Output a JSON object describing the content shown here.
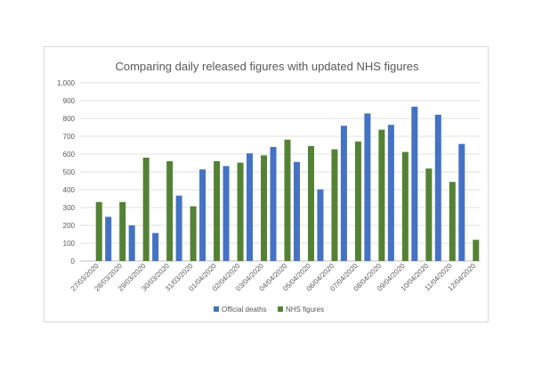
{
  "chart_data": {
    "type": "bar",
    "title": "Comparing daily released figures with updated NHS figures",
    "xlabel": "",
    "ylabel": "",
    "categories": [
      "27/03/2020",
      "28/03/2020",
      "29/03/2020",
      "30/03/2020",
      "31/03/2020",
      "01/04/2020",
      "02/04/2020",
      "03/04/2020",
      "04/04/2020",
      "05/04/2020",
      "06/04/2020",
      "07/04/2020",
      "08/04/2020",
      "09/04/2020",
      "10/04/2020",
      "11/04/2020",
      "12/04/2020"
    ],
    "series": [
      {
        "name": "Official deaths",
        "color": "#4472c4",
        "values": [
          null,
          248,
          200,
          157,
          367,
          514,
          533,
          604,
          640,
          556,
          402,
          759,
          828,
          764,
          866,
          821,
          657
        ]
      },
      {
        "name": "NHS figures",
        "color": "#548235",
        "values": [
          331,
          331,
          580,
          560,
          307,
          560,
          552,
          593,
          681,
          645,
          627,
          671,
          737,
          612,
          519,
          444,
          119
        ]
      }
    ],
    "ylim": [
      0,
      1000
    ],
    "yticks": [
      0,
      100,
      200,
      300,
      400,
      500,
      600,
      700,
      800,
      900,
      1000
    ],
    "ytick_labels": [
      "0",
      "100",
      "200",
      "300",
      "400",
      "500",
      "600",
      "700",
      "800",
      "900",
      "1,000"
    ],
    "grid": true,
    "legend_position": "bottom"
  }
}
